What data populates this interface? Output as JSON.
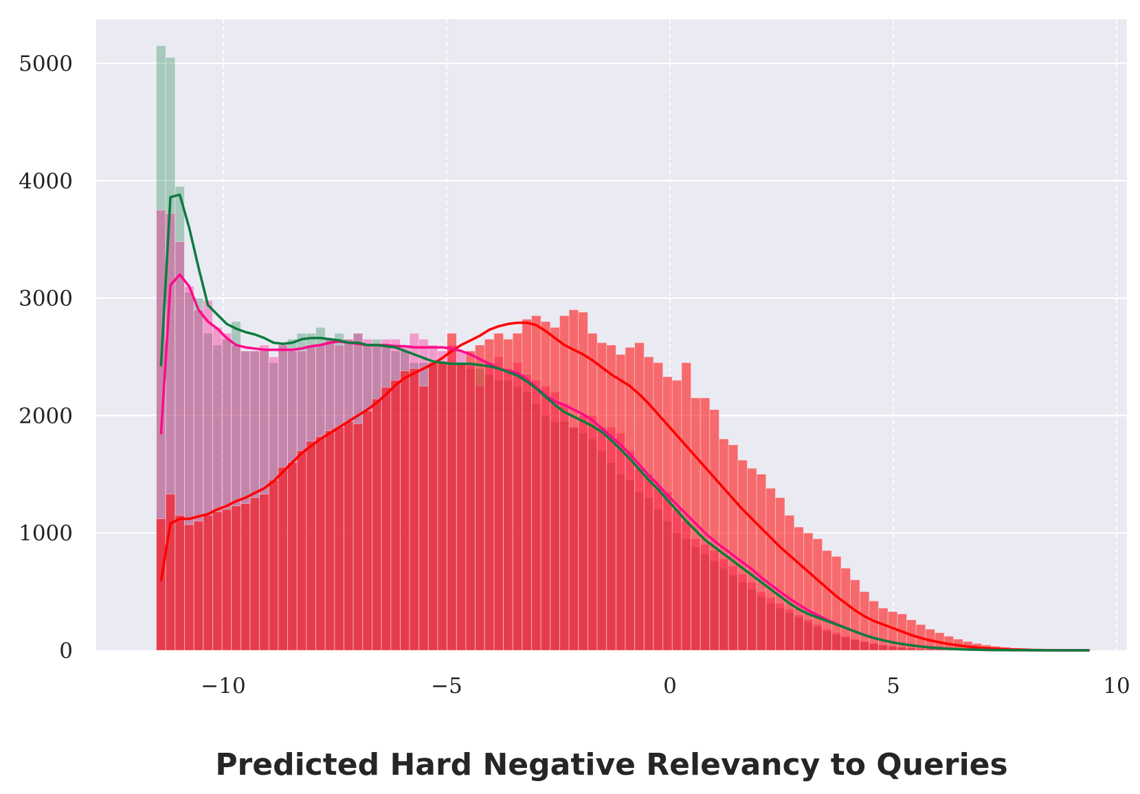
{
  "chart_data": {
    "type": "histogram",
    "title": "",
    "xlabel": "Predicted Hard Negative Relevancy to Queries",
    "ylabel": "",
    "xlim": [
      -12.5,
      10.5
    ],
    "ylim": [
      0,
      5400
    ],
    "x_ticks": [
      -10,
      -5,
      0,
      5,
      10
    ],
    "x_tick_labels": [
      "−10",
      "−5",
      "0",
      "5",
      "10"
    ],
    "y_ticks": [
      0,
      1000,
      2000,
      3000,
      4000,
      5000
    ],
    "y_tick_labels": [
      "0",
      "1000",
      "2000",
      "3000",
      "4000",
      "5000"
    ],
    "grid": true,
    "legend": "none",
    "background_color": "#eaeaf2",
    "bin_edges_range": [
      -11.5,
      9.5
    ],
    "bin_count": 100,
    "series": [
      {
        "color": "#0c7c3f",
        "values": [
          5150,
          5050,
          3950,
          3050,
          3000,
          2700,
          2600,
          2650,
          2800,
          2550,
          2550,
          2550,
          2450,
          2600,
          2650,
          2700,
          2700,
          2750,
          2650,
          2700,
          2650,
          2700,
          2600,
          2650,
          2600,
          2550,
          2550,
          2450,
          2450,
          2450,
          2450,
          2450,
          2450,
          2400,
          2400,
          2350,
          2300,
          2300,
          2250,
          2200,
          2100,
          2000,
          1950,
          1950,
          1900,
          1850,
          1800,
          1700,
          1600,
          1500,
          1450,
          1350,
          1300,
          1200,
          1100,
          1000,
          950,
          880,
          820,
          760,
          700,
          640,
          580,
          520,
          460,
          400,
          360,
          320,
          280,
          240,
          200,
          165,
          135,
          110,
          90,
          72,
          57,
          45,
          35,
          27,
          20,
          15,
          12,
          9,
          7,
          5,
          4,
          3,
          2,
          2,
          1,
          1,
          1,
          0,
          0,
          0,
          0,
          0,
          0,
          0
        ],
        "kde": [
          2420,
          3860,
          3880,
          3600,
          3260,
          2940,
          2860,
          2780,
          2740,
          2710,
          2690,
          2660,
          2620,
          2610,
          2620,
          2650,
          2660,
          2660,
          2650,
          2640,
          2620,
          2620,
          2600,
          2600,
          2590,
          2580,
          2550,
          2520,
          2490,
          2460,
          2450,
          2440,
          2440,
          2440,
          2430,
          2420,
          2400,
          2370,
          2340,
          2290,
          2230,
          2160,
          2090,
          2030,
          1990,
          1950,
          1910,
          1860,
          1790,
          1710,
          1630,
          1540,
          1450,
          1370,
          1280,
          1190,
          1100,
          1020,
          940,
          880,
          820,
          760,
          700,
          640,
          580,
          520,
          460,
          400,
          350,
          310,
          280,
          250,
          220,
          190,
          160,
          130,
          105,
          85,
          68,
          54,
          42,
          32,
          24,
          18,
          13,
          10,
          7,
          5,
          3,
          2,
          2,
          1,
          1,
          1,
          0,
          0,
          0,
          0,
          0,
          0
        ]
      },
      {
        "color": "#ff0a8a",
        "values": [
          3750,
          3720,
          3480,
          3100,
          2900,
          2980,
          2750,
          2700,
          2600,
          2550,
          2550,
          2600,
          2500,
          2600,
          2550,
          2550,
          2600,
          2600,
          2650,
          2600,
          2650,
          2700,
          2650,
          2600,
          2650,
          2650,
          2600,
          2700,
          2650,
          2600,
          2550,
          2600,
          2550,
          2450,
          2250,
          2450,
          2500,
          2400,
          2450,
          2350,
          2300,
          2250,
          2200,
          2100,
          1900,
          2000,
          2000,
          1900,
          1900,
          1850,
          1700,
          1550,
          1500,
          1400,
          1350,
          1200,
          1100,
          950,
          900,
          850,
          780,
          720,
          650,
          580,
          500,
          450,
          400,
          350,
          300,
          260,
          220,
          180,
          150,
          120,
          95,
          75,
          60,
          45,
          35,
          27,
          20,
          15,
          11,
          8,
          6,
          4,
          3,
          2,
          2,
          1,
          1,
          1,
          0,
          0,
          0,
          0,
          0,
          0,
          0,
          0
        ],
        "kde": [
          1840,
          3110,
          3200,
          3100,
          2900,
          2800,
          2740,
          2660,
          2600,
          2580,
          2570,
          2560,
          2560,
          2560,
          2560,
          2570,
          2590,
          2600,
          2620,
          2630,
          2620,
          2610,
          2600,
          2600,
          2600,
          2590,
          2590,
          2580,
          2580,
          2580,
          2580,
          2570,
          2550,
          2520,
          2480,
          2440,
          2400,
          2380,
          2360,
          2310,
          2240,
          2170,
          2120,
          2090,
          2050,
          2010,
          1960,
          1890,
          1820,
          1750,
          1670,
          1580,
          1490,
          1410,
          1320,
          1240,
          1160,
          1080,
          1000,
          930,
          870,
          810,
          750,
          690,
          620,
          560,
          500,
          440,
          390,
          340,
          300,
          260,
          225,
          190,
          160,
          130,
          105,
          85,
          68,
          54,
          42,
          32,
          24,
          18,
          13,
          10,
          7,
          5,
          3,
          2,
          2,
          1,
          1,
          0,
          0,
          0,
          0,
          0,
          0,
          0
        ]
      },
      {
        "color": "#ff0000",
        "values": [
          1120,
          1330,
          1150,
          1070,
          1100,
          1150,
          1180,
          1200,
          1230,
          1250,
          1300,
          1330,
          1450,
          1560,
          1600,
          1700,
          1780,
          1820,
          1870,
          1900,
          1950,
          1930,
          2040,
          2140,
          2240,
          2300,
          2380,
          2400,
          2250,
          2450,
          2460,
          2700,
          2450,
          2550,
          2600,
          2650,
          2700,
          2650,
          2700,
          2820,
          2850,
          2800,
          2750,
          2850,
          2900,
          2880,
          2700,
          2620,
          2600,
          2520,
          2580,
          2620,
          2500,
          2450,
          2330,
          2300,
          2450,
          2150,
          2150,
          2050,
          1800,
          1750,
          1620,
          1550,
          1500,
          1380,
          1300,
          1150,
          1050,
          1000,
          950,
          850,
          800,
          700,
          600,
          500,
          420,
          360,
          330,
          310,
          260,
          220,
          180,
          150,
          120,
          95,
          75,
          58,
          45,
          35,
          27,
          20,
          15,
          11,
          8,
          6,
          4,
          3,
          2,
          1
        ],
        "kde": [
          590,
          1080,
          1120,
          1120,
          1140,
          1160,
          1200,
          1230,
          1270,
          1300,
          1340,
          1380,
          1440,
          1520,
          1600,
          1680,
          1740,
          1800,
          1850,
          1900,
          1950,
          2000,
          2050,
          2110,
          2180,
          2260,
          2320,
          2360,
          2400,
          2440,
          2490,
          2550,
          2600,
          2640,
          2680,
          2730,
          2760,
          2780,
          2790,
          2790,
          2770,
          2720,
          2660,
          2600,
          2560,
          2520,
          2470,
          2410,
          2350,
          2300,
          2250,
          2180,
          2100,
          2010,
          1920,
          1830,
          1740,
          1650,
          1560,
          1470,
          1380,
          1290,
          1200,
          1120,
          1040,
          960,
          880,
          810,
          740,
          670,
          600,
          530,
          460,
          400,
          340,
          290,
          250,
          220,
          190,
          160,
          130,
          105,
          85,
          68,
          54,
          42,
          32,
          24,
          18,
          13,
          10,
          7,
          5,
          3,
          2,
          1,
          1,
          0,
          0,
          0
        ]
      }
    ]
  }
}
